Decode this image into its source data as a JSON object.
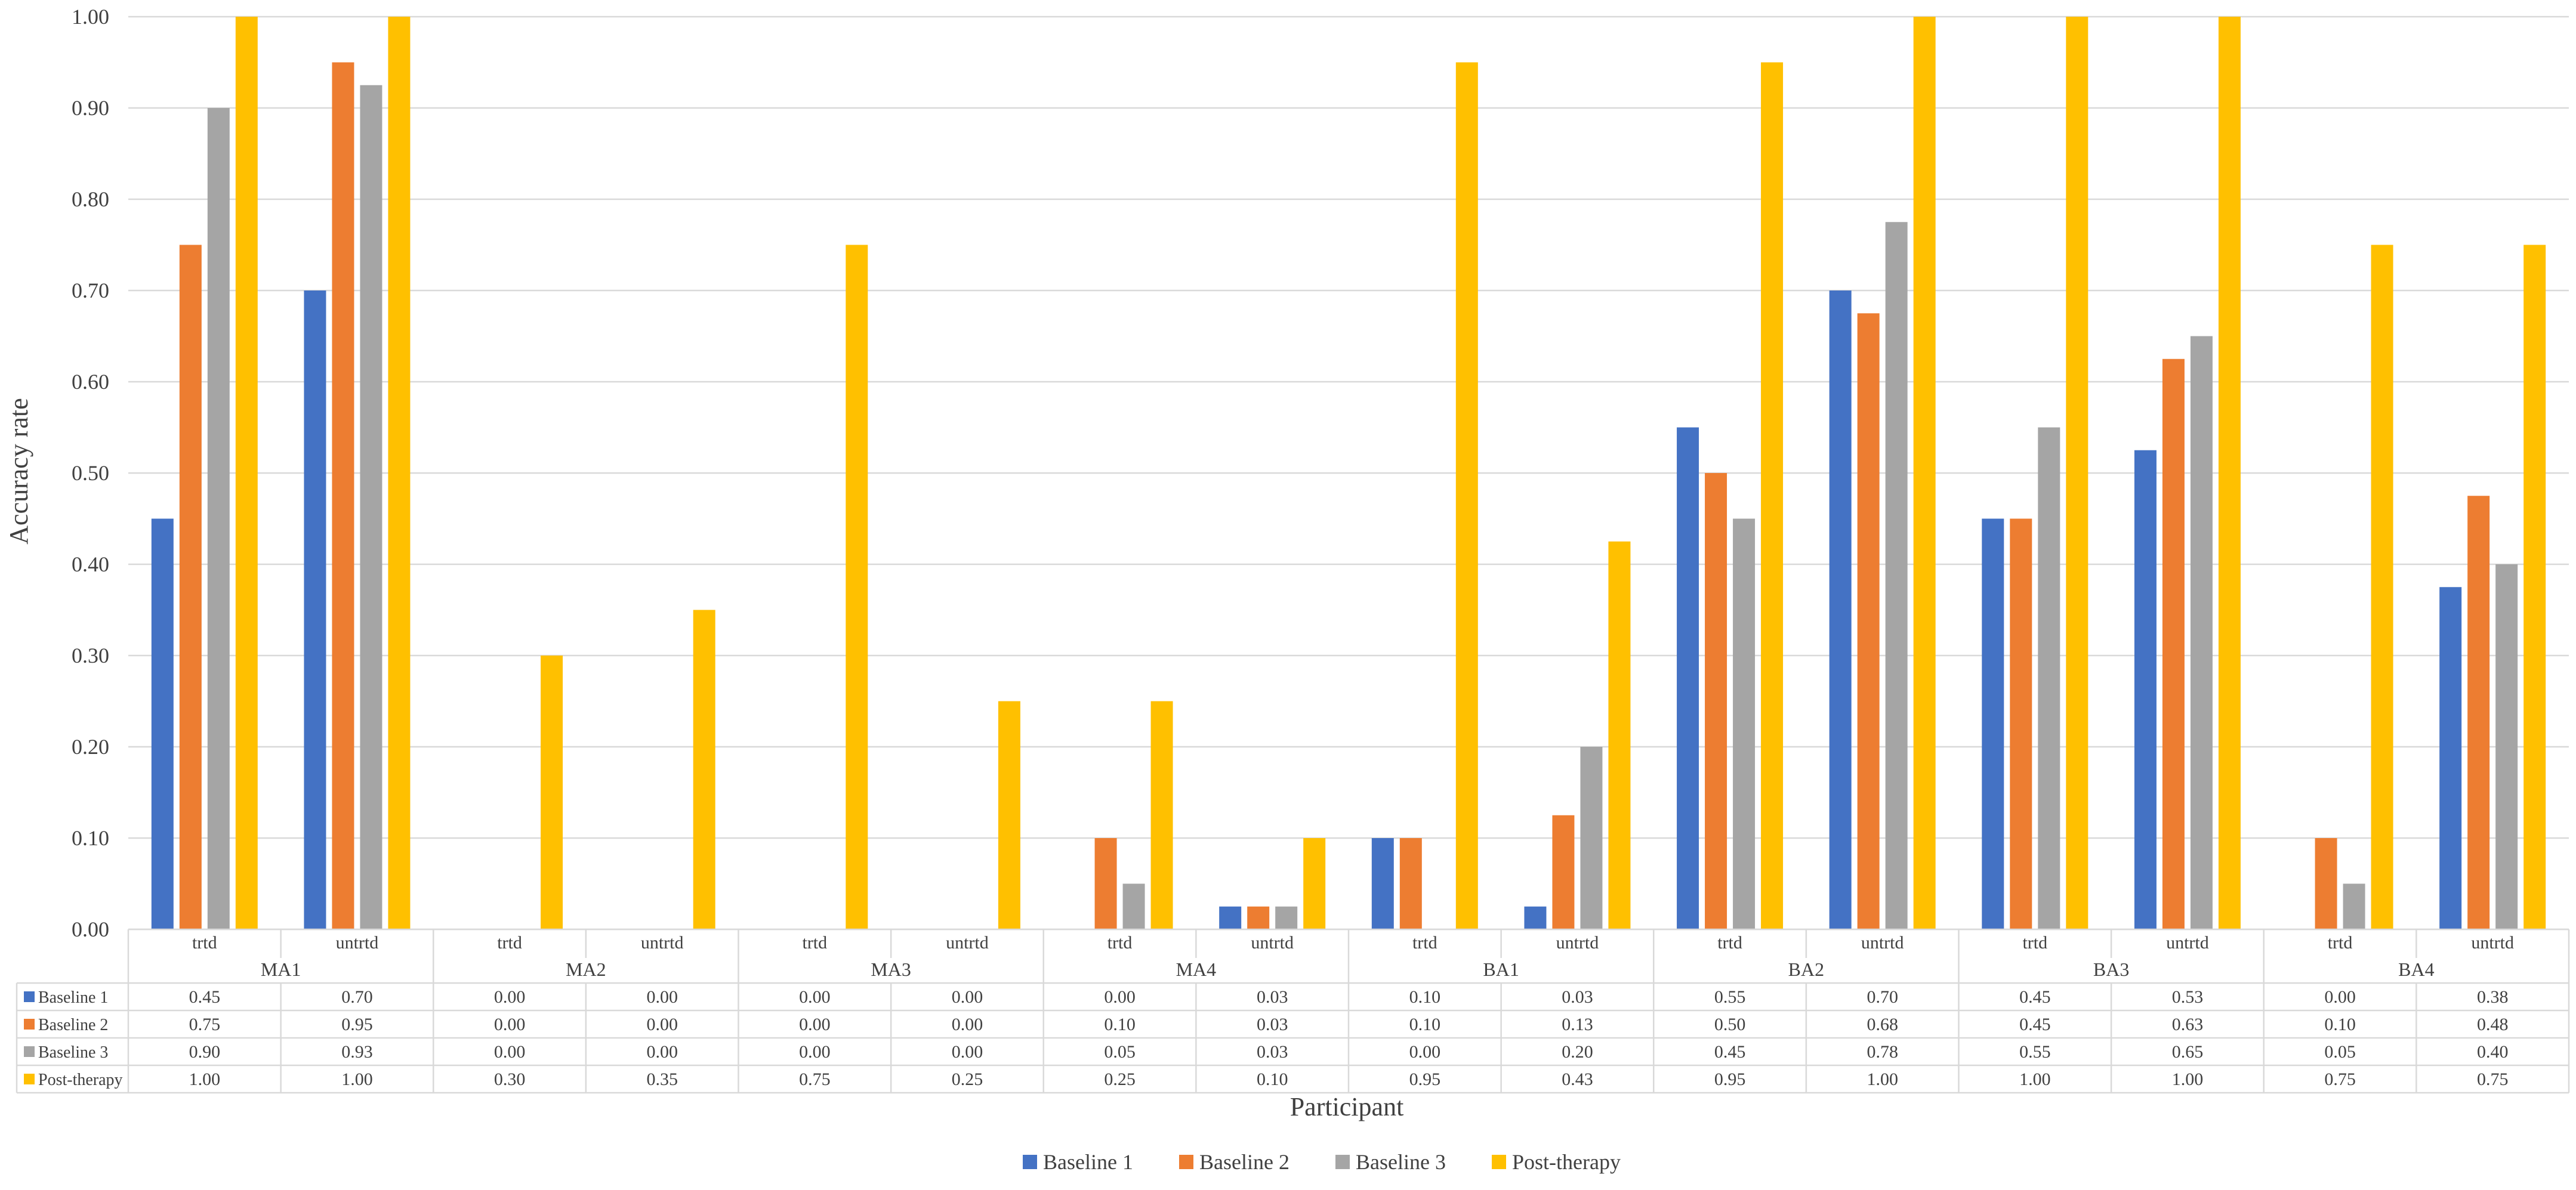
{
  "chart_data": {
    "type": "bar",
    "title": "",
    "xlabel": "Participant",
    "ylabel": "Accuracy rate",
    "ylim": [
      0,
      1
    ],
    "yticks": [
      "0.00",
      "0.10",
      "0.20",
      "0.30",
      "0.40",
      "0.50",
      "0.60",
      "0.70",
      "0.80",
      "0.90",
      "1.00"
    ],
    "grid": true,
    "legend_position": "bottom",
    "groups": [
      "MA1",
      "MA2",
      "MA3",
      "MA4",
      "BA1",
      "BA2",
      "BA3",
      "BA4"
    ],
    "subcategories": [
      "trtd",
      "untrtd"
    ],
    "categories": [
      "MA1 trtd",
      "MA1 untrtd",
      "MA2 trtd",
      "MA2 untrtd",
      "MA3 trtd",
      "MA3 untrtd",
      "MA4 trtd",
      "MA4 untrtd",
      "BA1 trtd",
      "BA1 untrtd",
      "BA2 trtd",
      "BA2 untrtd",
      "BA3 trtd",
      "BA3 untrtd",
      "BA4 trtd",
      "BA4 untrtd"
    ],
    "series": [
      {
        "name": "Baseline 1",
        "color": "#4472c4",
        "values": [
          0.45,
          0.7,
          0.0,
          0.0,
          0.0,
          0.0,
          0.0,
          0.025,
          0.1,
          0.025,
          0.55,
          0.7,
          0.45,
          0.525,
          0.0,
          0.375
        ],
        "labels": [
          "0.45",
          "0.70",
          "0.00",
          "0.00",
          "0.00",
          "0.00",
          "0.00",
          "0.03",
          "0.10",
          "0.03",
          "0.55",
          "0.70",
          "0.45",
          "0.53",
          "0.00",
          "0.38"
        ]
      },
      {
        "name": "Baseline 2",
        "color": "#ed7d31",
        "values": [
          0.75,
          0.95,
          0.0,
          0.0,
          0.0,
          0.0,
          0.1,
          0.025,
          0.1,
          0.125,
          0.5,
          0.675,
          0.45,
          0.625,
          0.1,
          0.475
        ],
        "labels": [
          "0.75",
          "0.95",
          "0.00",
          "0.00",
          "0.00",
          "0.00",
          "0.10",
          "0.03",
          "0.10",
          "0.13",
          "0.50",
          "0.68",
          "0.45",
          "0.63",
          "0.10",
          "0.48"
        ]
      },
      {
        "name": "Baseline 3",
        "color": "#a5a5a5",
        "values": [
          0.9,
          0.925,
          0.0,
          0.0,
          0.0,
          0.0,
          0.05,
          0.025,
          0.0,
          0.2,
          0.45,
          0.775,
          0.55,
          0.65,
          0.05,
          0.4
        ],
        "labels": [
          "0.90",
          "0.93",
          "0.00",
          "0.00",
          "0.00",
          "0.00",
          "0.05",
          "0.03",
          "0.00",
          "0.20",
          "0.45",
          "0.78",
          "0.55",
          "0.65",
          "0.05",
          "0.40"
        ]
      },
      {
        "name": "Post-therapy",
        "color": "#ffc000",
        "values": [
          1.0,
          1.0,
          0.3,
          0.35,
          0.75,
          0.25,
          0.25,
          0.1,
          0.95,
          0.425,
          0.95,
          1.0,
          1.0,
          1.0,
          0.75,
          0.75
        ],
        "labels": [
          "1.00",
          "1.00",
          "0.30",
          "0.35",
          "0.75",
          "0.25",
          "0.25",
          "0.10",
          "0.95",
          "0.43",
          "0.95",
          "1.00",
          "1.00",
          "1.00",
          "0.75",
          "0.75"
        ]
      }
    ]
  }
}
